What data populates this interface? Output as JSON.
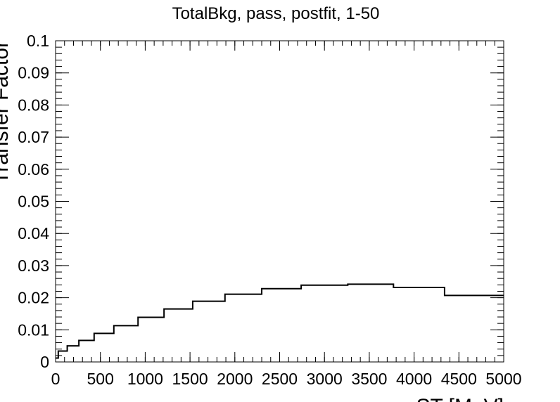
{
  "chart_data": {
    "type": "line",
    "style": "step-histogram",
    "title": "TotalBkg, pass, postfit, 1-50",
    "xlabel": "ST [MeV]",
    "ylabel": "Transfer Factor",
    "xlim": [
      0,
      5000
    ],
    "ylim": [
      0,
      0.1
    ],
    "grid": false,
    "x_ticks": [
      "0",
      "500",
      "1000",
      "1500",
      "2000",
      "2500",
      "3000",
      "3500",
      "4000",
      "4500",
      "5000"
    ],
    "y_ticks": [
      "0",
      "0.01",
      "0.02",
      "0.03",
      "0.04",
      "0.05",
      "0.06",
      "0.07",
      "0.08",
      "0.09",
      "0.1"
    ],
    "bin_edges": [
      0,
      30,
      130,
      260,
      430,
      650,
      920,
      1210,
      1530,
      1890,
      2300,
      2740,
      3260,
      3770,
      4340,
      5000
    ],
    "values": [
      0.0012,
      0.0034,
      0.005,
      0.0067,
      0.0089,
      0.0113,
      0.0139,
      0.0165,
      0.0189,
      0.0211,
      0.0228,
      0.0239,
      0.0242,
      0.0232,
      0.0207
    ],
    "line_color": "#000000"
  }
}
